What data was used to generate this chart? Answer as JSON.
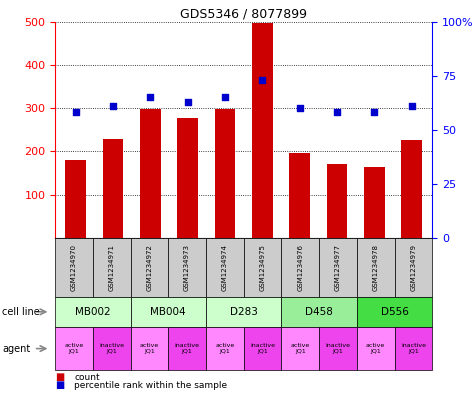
{
  "title": "GDS5346 / 8077899",
  "samples": [
    "GSM1234970",
    "GSM1234971",
    "GSM1234972",
    "GSM1234973",
    "GSM1234974",
    "GSM1234975",
    "GSM1234976",
    "GSM1234977",
    "GSM1234978",
    "GSM1234979"
  ],
  "counts": [
    180,
    228,
    298,
    278,
    298,
    497,
    197,
    170,
    163,
    225
  ],
  "percentiles": [
    58,
    61,
    65,
    63,
    65,
    73,
    60,
    58,
    58,
    61
  ],
  "cell_lines": [
    {
      "label": "MB002",
      "cols": [
        0,
        1
      ],
      "color": "#ccffcc"
    },
    {
      "label": "MB004",
      "cols": [
        2,
        3
      ],
      "color": "#ccffcc"
    },
    {
      "label": "D283",
      "cols": [
        4,
        5
      ],
      "color": "#ccffcc"
    },
    {
      "label": "D458",
      "cols": [
        6,
        7
      ],
      "color": "#99ee99"
    },
    {
      "label": "D556",
      "cols": [
        8,
        9
      ],
      "color": "#44dd44"
    }
  ],
  "agents": [
    "active\nJQ1",
    "inactive\nJQ1",
    "active\nJQ1",
    "inactive\nJQ1",
    "active\nJQ1",
    "inactive\nJQ1",
    "active\nJQ1",
    "inactive\nJQ1",
    "active\nJQ1",
    "inactive\nJQ1"
  ],
  "agent_active_color": "#ff88ff",
  "agent_inactive_color": "#ee44ee",
  "bar_color": "#cc0000",
  "dot_color": "#0000cc",
  "ylim_left": [
    0,
    500
  ],
  "ylim_right": [
    0,
    100
  ],
  "yticks_left": [
    100,
    200,
    300,
    400,
    500
  ],
  "yticks_right": [
    0,
    25,
    50,
    75,
    100
  ],
  "sample_box_color": "#cccccc"
}
